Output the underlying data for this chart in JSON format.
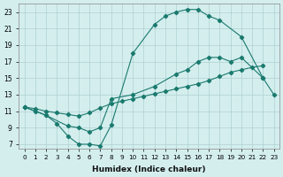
{
  "xlabel": "Humidex (Indice chaleur)",
  "background_color": "#d4eeee",
  "grid_color": "#b0d0d0",
  "line_color": "#1a7a6e",
  "xlim": [
    -0.5,
    23.5
  ],
  "ylim": [
    6.5,
    24.0
  ],
  "xtick_labels": [
    "0",
    "1",
    "2",
    "3",
    "4",
    "5",
    "6",
    "7",
    "8",
    "9",
    "10",
    "11",
    "12",
    "13",
    "14",
    "15",
    "16",
    "17",
    "18",
    "19",
    "20",
    "21",
    "22",
    "23"
  ],
  "ytick_values": [
    7,
    9,
    11,
    13,
    15,
    17,
    19,
    21,
    23
  ],
  "curve1_x": [
    0,
    1,
    2,
    3,
    4,
    5,
    6,
    7,
    8,
    10,
    12,
    13,
    14,
    15,
    16,
    17,
    18,
    20,
    22,
    23
  ],
  "curve1_y": [
    11.5,
    11,
    10.5,
    9.5,
    8.0,
    7.0,
    7.0,
    6.8,
    9.3,
    18.0,
    21.5,
    22.5,
    23.0,
    23.3,
    23.3,
    22.5,
    22.0,
    20.0,
    15.0,
    13.0
  ],
  "curve2_x": [
    0,
    1,
    2,
    3,
    4,
    5,
    6,
    7,
    8,
    9,
    10,
    11,
    12,
    13,
    14,
    15,
    16,
    17,
    18,
    19,
    20,
    21,
    22
  ],
  "curve2_y": [
    11.5,
    11.3,
    11.0,
    10.8,
    10.6,
    10.4,
    10.8,
    11.4,
    11.9,
    12.2,
    12.5,
    12.8,
    13.1,
    13.4,
    13.7,
    14.0,
    14.3,
    14.7,
    15.2,
    15.7,
    16.0,
    16.3,
    16.5
  ],
  "curve3_x": [
    0,
    2,
    4,
    5,
    6,
    7,
    8,
    10,
    12,
    14,
    15,
    16,
    17,
    18,
    19,
    20,
    22
  ],
  "curve3_y": [
    11.5,
    10.5,
    9.2,
    9.0,
    8.5,
    9.0,
    12.5,
    13.0,
    14.0,
    15.5,
    16.0,
    17.0,
    17.5,
    17.5,
    17.0,
    17.5,
    15.0
  ]
}
